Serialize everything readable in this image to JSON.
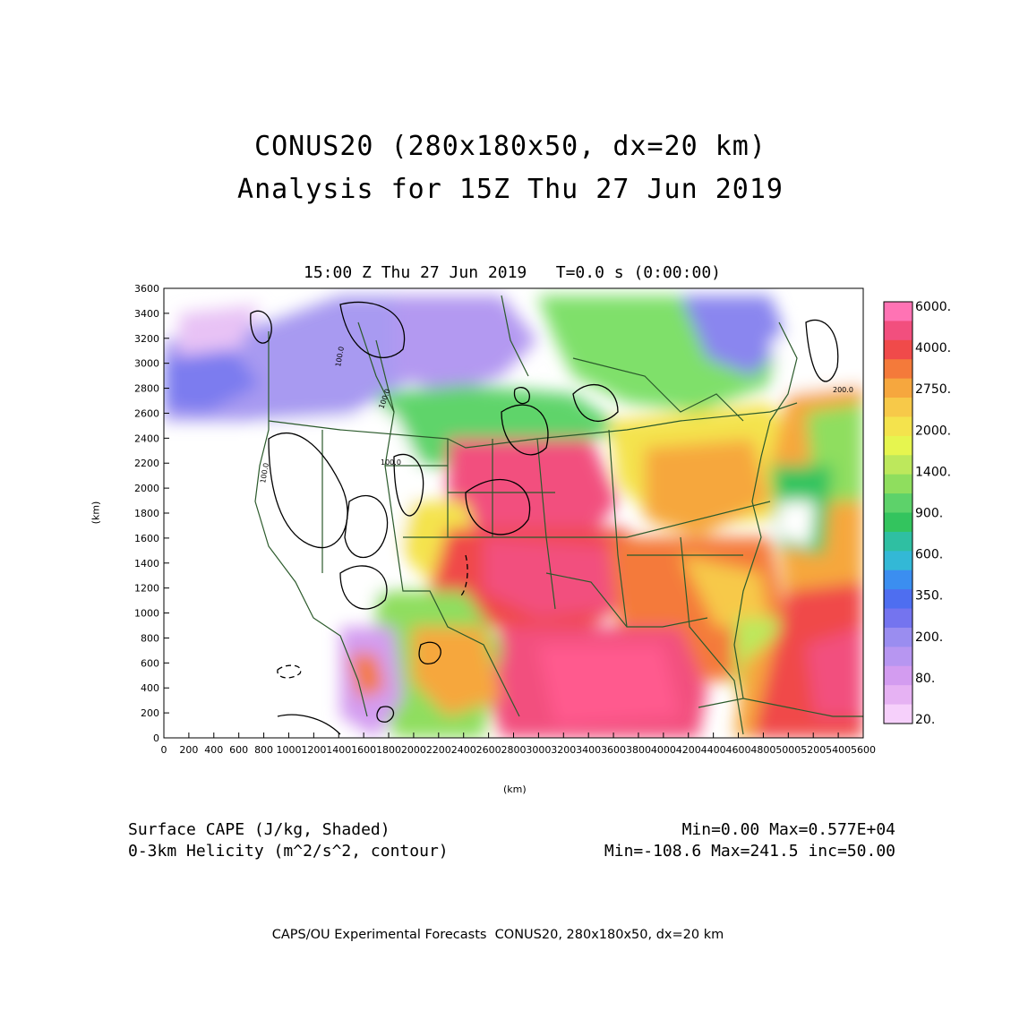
{
  "header": {
    "title_line1": "CONUS20 (280x180x50, dx=20 km)",
    "title_line2": "Analysis for 15Z Thu 27 Jun 2019",
    "valid_time": "15:00 Z Thu 27 Jun 2019   T=0.0 s (0:00:00)"
  },
  "axes": {
    "x_ticks": [
      "0",
      "200",
      "400",
      "600",
      "800",
      "1000",
      "1200",
      "1400",
      "1600",
      "1800",
      "2000",
      "2200",
      "2400",
      "2600",
      "2800",
      "3000",
      "3200",
      "3400",
      "3600",
      "3800",
      "4000",
      "4200",
      "4400",
      "4600",
      "4800",
      "5000",
      "5200",
      "5400",
      "5600"
    ],
    "y_ticks": [
      "0",
      "200",
      "400",
      "600",
      "800",
      "1000",
      "1200",
      "1400",
      "1600",
      "1800",
      "2000",
      "2200",
      "2400",
      "2600",
      "2800",
      "3000",
      "3200",
      "3400",
      "3600"
    ],
    "x_unit": "(km)",
    "y_unit": "(km)",
    "x_range": [
      0,
      5600
    ],
    "y_range": [
      0,
      3600
    ]
  },
  "colorbar": {
    "labels": [
      "6000.",
      "4000.",
      "2750.",
      "2000.",
      "1400.",
      "900.",
      "600.",
      "350.",
      "200.",
      "80.",
      "20."
    ],
    "colors": [
      "#ff73b4",
      "#f24f7e",
      "#f04a4a",
      "#f47a3a",
      "#f6a73e",
      "#f7c949",
      "#f4e34d",
      "#e6f54f",
      "#bde85c",
      "#8fde5e",
      "#5dd26a",
      "#33c45e",
      "#2fbfa2",
      "#33b8d6",
      "#3b8ef0",
      "#4e6ef0",
      "#7474ef",
      "#9a8df0",
      "#b796f1",
      "#d39cf0",
      "#e6b2f3",
      "#f6d0fb"
    ]
  },
  "footer": {
    "field1_label": "Surface CAPE (J/kg, Shaded)",
    "field1_stats": "Min=0.00 Max=0.577E+04",
    "field2_label": "0-3km Helicity (m^2/s^2, contour)",
    "field2_stats": "Min=-108.6 Max=241.5 inc=50.00",
    "credit": "CAPS/OU Experimental Forecasts  CONUS20, 280x180x50, dx=20 km"
  },
  "contour_labels": [
    "100.0",
    "100.0",
    "100.0",
    "100.0",
    "200.0"
  ],
  "map_colors": {
    "state_borders": "#2b5a2b",
    "contour": "#000000"
  }
}
